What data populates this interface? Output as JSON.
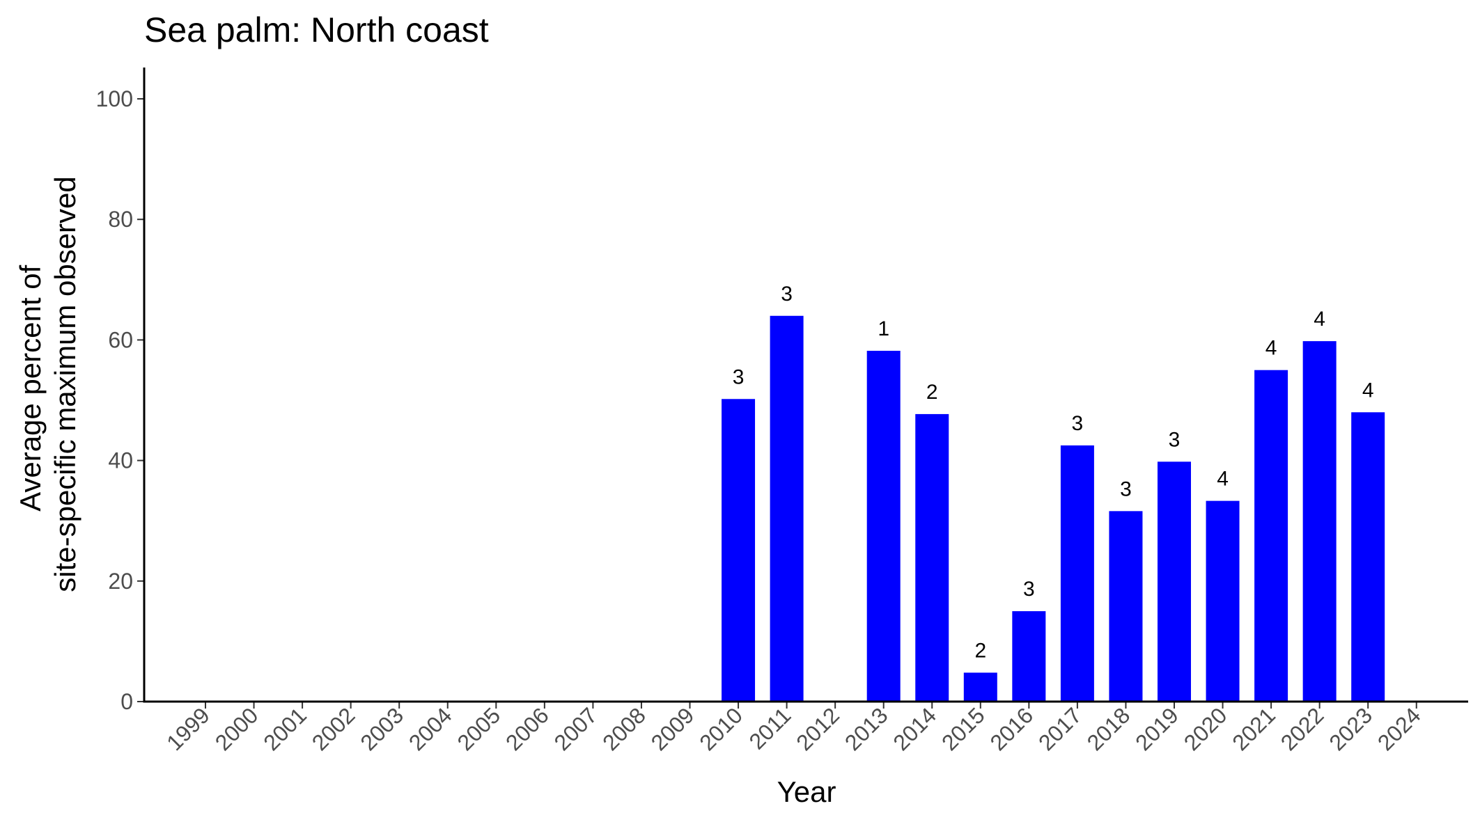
{
  "chart_data": {
    "type": "bar",
    "title": "Sea palm: North coast",
    "xlabel": "Year",
    "ylabel_lines": [
      "Average percent of",
      "site-specific maximum observed"
    ],
    "categories": [
      "1999",
      "2000",
      "2001",
      "2002",
      "2003",
      "2004",
      "2005",
      "2006",
      "2007",
      "2008",
      "2009",
      "2010",
      "2011",
      "2012",
      "2013",
      "2014",
      "2015",
      "2016",
      "2017",
      "2018",
      "2019",
      "2020",
      "2021",
      "2022",
      "2023",
      "2024"
    ],
    "values": [
      null,
      null,
      null,
      null,
      null,
      null,
      null,
      null,
      null,
      null,
      null,
      50.2,
      64.0,
      null,
      58.2,
      47.7,
      4.8,
      15.0,
      42.5,
      31.6,
      39.8,
      33.3,
      55.0,
      59.8,
      48.0,
      null
    ],
    "labels": [
      null,
      null,
      null,
      null,
      null,
      null,
      null,
      null,
      null,
      null,
      null,
      "3",
      "3",
      null,
      "1",
      "2",
      "2",
      "3",
      "3",
      "3",
      "3",
      "4",
      "4",
      "4",
      "4",
      null
    ],
    "ylim": [
      0,
      100
    ],
    "yticks": [
      0,
      20,
      40,
      60,
      80,
      100
    ],
    "grid": false,
    "bar_color": "#0000FF"
  }
}
